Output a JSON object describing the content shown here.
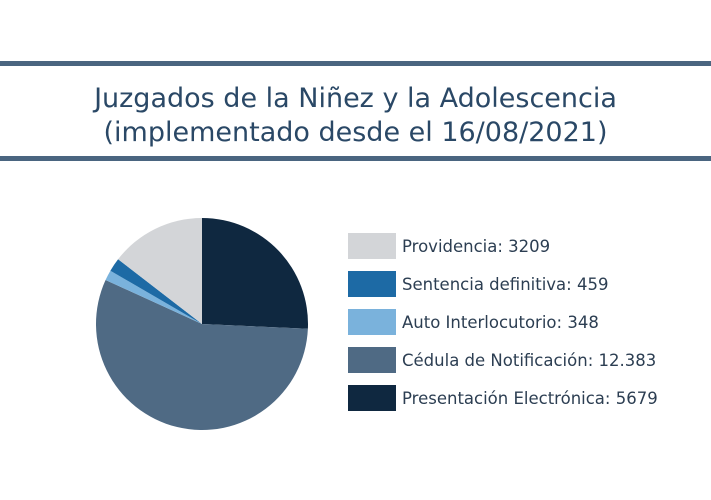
{
  "chart_data": {
    "type": "pie",
    "title_lines": [
      "Juzgados de la Niñez y la Adolescencia",
      "(implementado desde el 16/08/2021)"
    ],
    "slices": [
      {
        "label": "Providencia",
        "value": 3209,
        "display": "3209",
        "color": "#d3d5d8"
      },
      {
        "label": "Sentencia definitiva",
        "value": 459,
        "display": "459",
        "color": "#1d6aa5"
      },
      {
        "label": "Auto Interlocutorio",
        "value": 348,
        "display": "348",
        "color": "#7ab2dc"
      },
      {
        "label": "Cédula de Notificación",
        "value": 12383,
        "display": "12.383",
        "color": "#4f6a84"
      },
      {
        "label": "Presentación Electrónica",
        "value": 5679,
        "display": "5679",
        "color": "#0f2840"
      }
    ],
    "start": "12 o'clock",
    "direction": "clockwise",
    "slice_order": [
      4,
      3,
      2,
      1,
      0
    ],
    "legend_position": "right"
  }
}
